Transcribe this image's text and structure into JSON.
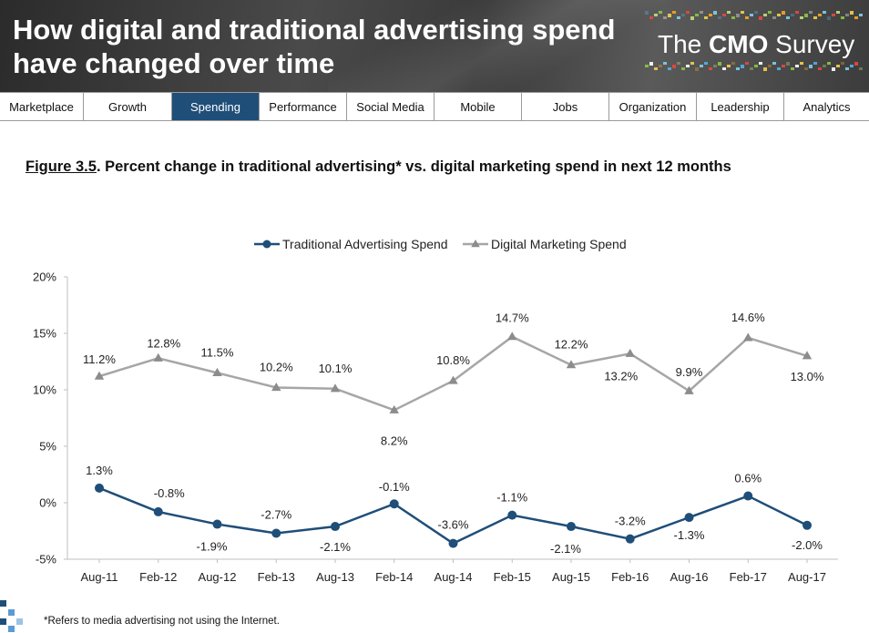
{
  "header": {
    "title_line1": "How digital and traditional advertising spend",
    "title_line2": "have changed over time",
    "brand_prefix": "The ",
    "brand_bold": "CMO",
    "brand_suffix": " Survey"
  },
  "nav": {
    "tabs": [
      {
        "label": "Marketplace",
        "active": false
      },
      {
        "label": "Growth",
        "active": false
      },
      {
        "label": "Spending",
        "active": true
      },
      {
        "label": "Performance",
        "active": false
      },
      {
        "label": "Social Media",
        "active": false
      },
      {
        "label": "Mobile",
        "active": false
      },
      {
        "label": "Jobs",
        "active": false
      },
      {
        "label": "Organization",
        "active": false
      },
      {
        "label": "Leadership",
        "active": false
      },
      {
        "label": "Analytics",
        "active": false
      }
    ]
  },
  "caption": {
    "figure": "Figure 3.5",
    "text": ".  Percent change in traditional advertising* vs. digital marketing spend in next 12 months"
  },
  "footnote": "*Refers to media advertising not using the Internet.",
  "colors": {
    "banner_dark": "#3a3a3a",
    "nav_active": "#1f4e79",
    "traditional": "#1f4e79",
    "digital": "#a6a6a6"
  },
  "chart_data": {
    "type": "line",
    "title": "",
    "xlabel": "",
    "ylabel": "",
    "ylim": [
      -5,
      20
    ],
    "yticks": [
      -5,
      0,
      5,
      10,
      15,
      20
    ],
    "ytick_labels": [
      "-5%",
      "0%",
      "5%",
      "10%",
      "15%",
      "20%"
    ],
    "grid": false,
    "legend_position": "top-center",
    "categories": [
      "Aug-11",
      "Feb-12",
      "Aug-12",
      "Feb-13",
      "Aug-13",
      "Feb-14",
      "Aug-14",
      "Feb-15",
      "Aug-15",
      "Feb-16",
      "Aug-16",
      "Feb-17",
      "Aug-17"
    ],
    "series": [
      {
        "name": "Traditional Advertising Spend",
        "marker": "circle",
        "values": [
          1.3,
          -0.8,
          -1.9,
          -2.7,
          -2.1,
          -0.1,
          -3.6,
          -1.1,
          -2.1,
          -3.2,
          -1.3,
          0.6,
          -2.0
        ],
        "labels": [
          "1.3%",
          "-0.8%",
          "-1.9%",
          "-2.7%",
          "-2.1%",
          "-0.1%",
          "-3.6%",
          "-1.1%",
          "-2.1%",
          "-3.2%",
          "-1.3%",
          "0.6%",
          "-2.0%"
        ]
      },
      {
        "name": "Digital Marketing Spend",
        "marker": "triangle",
        "values": [
          11.2,
          12.8,
          11.5,
          10.2,
          10.1,
          8.2,
          10.8,
          14.7,
          12.2,
          13.2,
          9.9,
          14.6,
          13.0
        ],
        "labels": [
          "11.2%",
          "12.8%",
          "11.5%",
          "10.2%",
          "10.1%",
          "8.2%",
          "10.8%",
          "14.7%",
          "12.2%",
          "13.2%",
          "9.9%",
          "14.6%",
          "13.0%"
        ]
      }
    ]
  }
}
